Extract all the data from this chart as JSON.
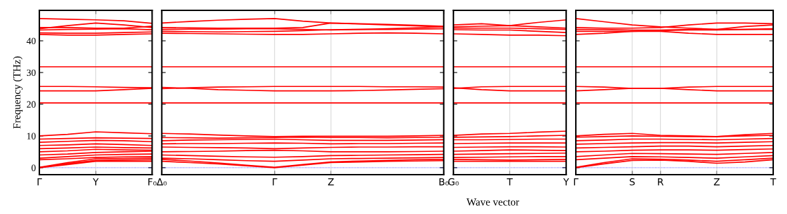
{
  "chart_data": [
    {
      "type": "line",
      "ylabel": "Frequency (THz)",
      "line_style": "solid",
      "categories": [
        "Γ",
        null,
        "Y",
        null,
        "F₀"
      ],
      "ylim": [
        -2.2,
        49.6
      ],
      "yticks": [
        0,
        10,
        20,
        30,
        40
      ],
      "ref_lines": [
        {
          "axis": "y",
          "value": 0,
          "color": "#0000ff",
          "line_style": "dotted"
        },
        {
          "axis": "x",
          "value": "Y",
          "color": "#cccccc",
          "line_style": "solid"
        }
      ],
      "series": [
        {
          "color": "#ff0000",
          "values": [
            0,
            1.0,
            2.0,
            2.0,
            2.0
          ]
        },
        {
          "color": "#ff0000",
          "values": [
            0,
            1.3,
            2.3,
            2.4,
            2.5
          ]
        },
        {
          "color": "#ff0000",
          "values": [
            0.1,
            1.6,
            2.8,
            2.9,
            3.0
          ]
        },
        {
          "color": "#ff0000",
          "values": [
            2.5,
            2.8,
            3.2,
            3.4,
            3.5
          ]
        },
        {
          "color": "#ff0000",
          "values": [
            3.0,
            3.5,
            4.0,
            4.2,
            4.3
          ]
        },
        {
          "color": "#ff0000",
          "values": [
            4.0,
            4.3,
            4.8,
            5.0,
            5.2
          ]
        },
        {
          "color": "#ff0000",
          "values": [
            5.0,
            5.3,
            5.8,
            5.6,
            5.5
          ]
        },
        {
          "color": "#ff0000",
          "values": [
            6.0,
            6.2,
            6.5,
            6.3,
            6.2
          ]
        },
        {
          "color": "#ff0000",
          "values": [
            7.0,
            7.2,
            7.5,
            7.3,
            7.0
          ]
        },
        {
          "color": "#ff0000",
          "values": [
            8.0,
            8.3,
            8.6,
            8.5,
            8.2
          ]
        },
        {
          "color": "#ff0000",
          "values": [
            9.0,
            9.2,
            9.4,
            9.3,
            9.2
          ]
        },
        {
          "color": "#ff0000",
          "values": [
            10.0,
            10.5,
            11.3,
            11.0,
            10.7
          ]
        },
        {
          "color": "#ff0000",
          "values": [
            20.4,
            20.4,
            20.4,
            20.4,
            20.4
          ]
        },
        {
          "color": "#ff0000",
          "values": [
            24.2,
            24.2,
            24.2,
            24.6,
            25.0
          ]
        },
        {
          "color": "#ff0000",
          "values": [
            25.6,
            25.6,
            25.5,
            25.3,
            25.2
          ]
        },
        {
          "color": "#ff0000",
          "values": [
            31.8,
            31.8,
            31.8,
            31.8,
            31.8
          ]
        },
        {
          "color": "#ff0000",
          "values": [
            42.0,
            41.8,
            41.8,
            42.0,
            42.2
          ]
        },
        {
          "color": "#ff0000",
          "values": [
            42.5,
            42.4,
            42.4,
            42.6,
            42.8
          ]
        },
        {
          "color": "#ff0000",
          "values": [
            43.4,
            43.6,
            43.7,
            43.8,
            43.5
          ]
        },
        {
          "color": "#ff0000",
          "values": [
            43.8,
            44.8,
            45.6,
            45.0,
            44.2
          ]
        },
        {
          "color": "#ff0000",
          "values": [
            44.2,
            44.2,
            44.0,
            44.0,
            44.6
          ]
        },
        {
          "color": "#ff0000",
          "values": [
            47.0,
            46.8,
            46.6,
            46.3,
            45.5
          ]
        }
      ]
    },
    {
      "type": "line",
      "line_style": "solid",
      "tick_labels": "x",
      "categories": [
        "Δ₀",
        null,
        null,
        null,
        "Γ",
        null,
        "Z",
        null,
        null,
        null,
        "B₀"
      ],
      "ylim": [
        -2.2,
        49.6
      ],
      "yticks": [
        0,
        10,
        20,
        30,
        40
      ],
      "ref_lines": [
        {
          "axis": "y",
          "value": 0,
          "color": "#0000ff",
          "line_style": "dotted"
        },
        {
          "axis": "x",
          "value": "Γ",
          "color": "#cccccc",
          "line_style": "solid"
        },
        {
          "axis": "x",
          "value": "Z",
          "color": "#cccccc",
          "line_style": "solid"
        }
      ],
      "series": [
        {
          "color": "#ff0000",
          "values": [
            2.0,
            1.6,
            1.2,
            0.6,
            0.0,
            0.8,
            1.6,
            1.8,
            2.0,
            2.1,
            2.2
          ]
        },
        {
          "color": "#ff0000",
          "values": [
            2.6,
            2.1,
            1.5,
            0.8,
            0.1,
            1.0,
            1.8,
            2.1,
            2.3,
            2.5,
            2.6
          ]
        },
        {
          "color": "#ff0000",
          "values": [
            3.0,
            2.8,
            2.5,
            2.2,
            2.0,
            2.4,
            2.8,
            2.9,
            3.0,
            3.1,
            3.2
          ]
        },
        {
          "color": "#ff0000",
          "values": [
            4.0,
            3.8,
            3.6,
            3.4,
            3.3,
            3.5,
            3.8,
            3.9,
            4.0,
            4.1,
            4.2
          ]
        },
        {
          "color": "#ff0000",
          "values": [
            5.0,
            5.1,
            5.2,
            5.4,
            5.5,
            5.3,
            5.0,
            5.0,
            5.0,
            5.1,
            5.2
          ]
        },
        {
          "color": "#ff0000",
          "values": [
            6.5,
            6.4,
            6.3,
            6.2,
            6.0,
            6.2,
            6.4,
            6.5,
            6.5,
            6.6,
            6.6
          ]
        },
        {
          "color": "#ff0000",
          "values": [
            7.5,
            7.6,
            7.6,
            7.7,
            7.8,
            7.7,
            7.5,
            7.6,
            7.6,
            7.7,
            7.8
          ]
        },
        {
          "color": "#ff0000",
          "values": [
            8.5,
            8.7,
            8.8,
            8.9,
            9.0,
            8.8,
            8.6,
            8.6,
            8.6,
            8.7,
            8.8
          ]
        },
        {
          "color": "#ff0000",
          "values": [
            9.5,
            9.4,
            9.3,
            9.4,
            9.5,
            9.6,
            9.5,
            9.5,
            9.4,
            9.5,
            9.6
          ]
        },
        {
          "color": "#ff0000",
          "values": [
            10.8,
            10.6,
            10.3,
            10.0,
            9.8,
            9.9,
            9.9,
            9.9,
            9.9,
            10.0,
            10.2
          ]
        },
        {
          "color": "#ff0000",
          "values": [
            20.4,
            20.4,
            20.4,
            20.4,
            20.4,
            20.4,
            20.4,
            20.4,
            20.4,
            20.4,
            20.4
          ]
        },
        {
          "color": "#ff0000",
          "values": [
            24.9,
            25.2,
            25.4,
            25.5,
            25.6,
            25.6,
            25.6,
            25.6,
            25.5,
            25.5,
            25.4
          ]
        },
        {
          "color": "#ff0000",
          "values": [
            25.3,
            25.0,
            24.6,
            24.4,
            24.2,
            24.2,
            24.2,
            24.3,
            24.5,
            24.7,
            24.9
          ]
        },
        {
          "color": "#ff0000",
          "values": [
            31.8,
            31.8,
            31.8,
            31.8,
            31.8,
            31.8,
            31.8,
            31.8,
            31.8,
            31.8,
            31.8
          ]
        },
        {
          "color": "#ff0000",
          "values": [
            42.4,
            42.3,
            42.2,
            42.1,
            42.0,
            42.0,
            42.2,
            42.4,
            42.5,
            42.4,
            42.2
          ]
        },
        {
          "color": "#ff0000",
          "values": [
            43.0,
            42.9,
            42.8,
            42.9,
            43.0,
            43.2,
            43.5,
            43.6,
            43.6,
            43.7,
            43.8
          ]
        },
        {
          "color": "#ff0000",
          "values": [
            43.6,
            43.7,
            43.7,
            43.8,
            43.8,
            43.6,
            43.4,
            43.6,
            43.8,
            44.1,
            44.4
          ]
        },
        {
          "color": "#ff0000",
          "values": [
            44.2,
            44.1,
            44.0,
            44.0,
            44.0,
            44.2,
            45.6,
            45.3,
            45.0,
            44.7,
            44.4
          ]
        },
        {
          "color": "#ff0000",
          "values": [
            45.6,
            46.1,
            46.5,
            46.8,
            47.0,
            46.2,
            45.6,
            45.4,
            45.2,
            44.9,
            44.6
          ]
        }
      ]
    },
    {
      "type": "line",
      "xlabel": "Wave vector",
      "line_style": "solid",
      "tick_labels": "x",
      "categories": [
        "G₀",
        null,
        "T",
        null,
        "Y"
      ],
      "ylim": [
        -2.2,
        49.6
      ],
      "yticks": [
        0,
        10,
        20,
        30,
        40
      ],
      "ref_lines": [
        {
          "axis": "y",
          "value": 0,
          "color": "#0000ff",
          "line_style": "dotted"
        },
        {
          "axis": "x",
          "value": "T",
          "color": "#cccccc",
          "line_style": "solid"
        }
      ],
      "series": [
        {
          "color": "#ff0000",
          "values": [
            2.0,
            2.0,
            2.0,
            2.0,
            2.0
          ]
        },
        {
          "color": "#ff0000",
          "values": [
            2.6,
            2.5,
            2.4,
            2.5,
            2.6
          ]
        },
        {
          "color": "#ff0000",
          "values": [
            3.2,
            3.3,
            3.4,
            3.5,
            3.5
          ]
        },
        {
          "color": "#ff0000",
          "values": [
            4.2,
            4.3,
            4.4,
            4.5,
            4.6
          ]
        },
        {
          "color": "#ff0000",
          "values": [
            5.2,
            5.4,
            5.6,
            5.5,
            5.4
          ]
        },
        {
          "color": "#ff0000",
          "values": [
            6.4,
            6.5,
            6.6,
            6.6,
            6.5
          ]
        },
        {
          "color": "#ff0000",
          "values": [
            7.6,
            7.7,
            7.8,
            7.8,
            7.8
          ]
        },
        {
          "color": "#ff0000",
          "values": [
            8.8,
            8.8,
            8.9,
            9.0,
            9.0
          ]
        },
        {
          "color": "#ff0000",
          "values": [
            9.6,
            9.7,
            9.8,
            10.0,
            10.2
          ]
        },
        {
          "color": "#ff0000",
          "values": [
            10.2,
            10.6,
            10.8,
            11.2,
            11.5
          ]
        },
        {
          "color": "#ff0000",
          "values": [
            20.4,
            20.4,
            20.4,
            20.4,
            20.4
          ]
        },
        {
          "color": "#ff0000",
          "values": [
            25.2,
            24.6,
            24.2,
            24.2,
            24.2
          ]
        },
        {
          "color": "#ff0000",
          "values": [
            25.0,
            25.5,
            25.6,
            25.6,
            25.6
          ]
        },
        {
          "color": "#ff0000",
          "values": [
            31.8,
            31.8,
            31.8,
            31.8,
            31.8
          ]
        },
        {
          "color": "#ff0000",
          "values": [
            42.2,
            42.0,
            41.8,
            41.8,
            41.6
          ]
        },
        {
          "color": "#ff0000",
          "values": [
            43.5,
            43.4,
            43.4,
            43.0,
            42.6
          ]
        },
        {
          "color": "#ff0000",
          "values": [
            44.0,
            44.0,
            44.0,
            43.8,
            43.6
          ]
        },
        {
          "color": "#ff0000",
          "values": [
            44.4,
            44.6,
            44.8,
            44.4,
            44.0
          ]
        },
        {
          "color": "#ff0000",
          "values": [
            45.0,
            45.4,
            44.8,
            45.8,
            46.6
          ]
        }
      ]
    },
    {
      "type": "line",
      "line_style": "solid",
      "tick_labels": "x",
      "categories": [
        "Γ",
        null,
        "S",
        "R",
        null,
        "Z",
        null,
        "T"
      ],
      "ylim": [
        -2.2,
        49.6
      ],
      "yticks": [
        0,
        10,
        20,
        30,
        40
      ],
      "ref_lines": [
        {
          "axis": "y",
          "value": 0,
          "color": "#0000ff",
          "line_style": "dotted"
        },
        {
          "axis": "x",
          "value": "S",
          "color": "#cccccc",
          "line_style": "solid"
        },
        {
          "axis": "x",
          "value": "R",
          "color": "#cccccc",
          "line_style": "solid"
        },
        {
          "axis": "x",
          "value": "Z",
          "color": "#cccccc",
          "line_style": "solid"
        }
      ],
      "series": [
        {
          "color": "#ff0000",
          "values": [
            0,
            1.2,
            2.3,
            2.4,
            2.0,
            1.4,
            1.8,
            2.5
          ]
        },
        {
          "color": "#ff0000",
          "values": [
            0.1,
            1.6,
            2.8,
            2.7,
            2.4,
            2.0,
            2.5,
            3.0
          ]
        },
        {
          "color": "#ff0000",
          "values": [
            2.5,
            3.0,
            3.5,
            3.4,
            3.2,
            3.0,
            3.4,
            3.8
          ]
        },
        {
          "color": "#ff0000",
          "values": [
            3.5,
            4.0,
            4.5,
            4.4,
            4.3,
            4.2,
            4.5,
            4.8
          ]
        },
        {
          "color": "#ff0000",
          "values": [
            5.0,
            5.2,
            5.5,
            5.6,
            5.6,
            5.5,
            5.7,
            5.9
          ]
        },
        {
          "color": "#ff0000",
          "values": [
            6.2,
            6.4,
            6.6,
            6.8,
            6.8,
            6.6,
            6.8,
            7.0
          ]
        },
        {
          "color": "#ff0000",
          "values": [
            7.4,
            7.6,
            7.8,
            7.9,
            7.9,
            7.8,
            8.0,
            8.2
          ]
        },
        {
          "color": "#ff0000",
          "values": [
            8.5,
            8.7,
            9.0,
            9.0,
            8.9,
            8.8,
            9.0,
            9.2
          ]
        },
        {
          "color": "#ff0000",
          "values": [
            9.6,
            9.8,
            10.0,
            9.9,
            9.8,
            9.8,
            10.0,
            10.2
          ]
        },
        {
          "color": "#ff0000",
          "values": [
            10.0,
            10.5,
            10.8,
            10.2,
            10.0,
            9.8,
            10.4,
            10.8
          ]
        },
        {
          "color": "#ff0000",
          "values": [
            20.4,
            20.4,
            20.4,
            20.4,
            20.4,
            20.4,
            20.4,
            20.4
          ]
        },
        {
          "color": "#ff0000",
          "values": [
            24.2,
            24.6,
            25.0,
            25.0,
            24.6,
            24.2,
            24.2,
            24.2
          ]
        },
        {
          "color": "#ff0000",
          "values": [
            25.6,
            25.4,
            25.0,
            25.0,
            25.4,
            25.6,
            25.6,
            25.6
          ]
        },
        {
          "color": "#ff0000",
          "values": [
            31.8,
            31.8,
            31.8,
            31.8,
            31.8,
            31.8,
            31.8,
            31.8
          ]
        },
        {
          "color": "#ff0000",
          "values": [
            42.0,
            42.4,
            43.0,
            43.0,
            42.4,
            42.0,
            42.0,
            42.0
          ]
        },
        {
          "color": "#ff0000",
          "values": [
            43.0,
            43.0,
            43.0,
            43.2,
            43.4,
            43.4,
            43.6,
            43.8
          ]
        },
        {
          "color": "#ff0000",
          "values": [
            43.6,
            43.6,
            43.4,
            43.4,
            43.6,
            43.6,
            44.5,
            45.0
          ]
        },
        {
          "color": "#ff0000",
          "values": [
            44.2,
            44.0,
            44.0,
            44.2,
            45.0,
            45.6,
            45.6,
            45.4
          ]
        },
        {
          "color": "#ff0000",
          "values": [
            47.0,
            46.0,
            45.0,
            44.4,
            44.0,
            43.6,
            43.6,
            43.6
          ]
        }
      ]
    }
  ]
}
